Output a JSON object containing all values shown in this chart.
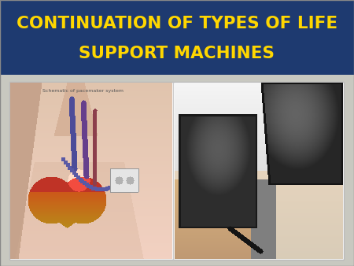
{
  "title_line1": "CONTINUATION OF TYPES OF LIFE",
  "title_line2": "SUPPORT MACHINES",
  "title_color": "#FFD700",
  "title_bg_color": "#1E3A70",
  "slide_bg_color": "#C8C8C0",
  "outer_border_color": "#AAAAAA",
  "title_fontsize": 15.5,
  "fig_width": 4.5,
  "fig_height": 3.38,
  "dpi": 100,
  "img_border_color": "#BBBBBB",
  "label_text": "Schematic of pacemaker system",
  "label_fontsize": 4.5,
  "label_color": "#555555"
}
